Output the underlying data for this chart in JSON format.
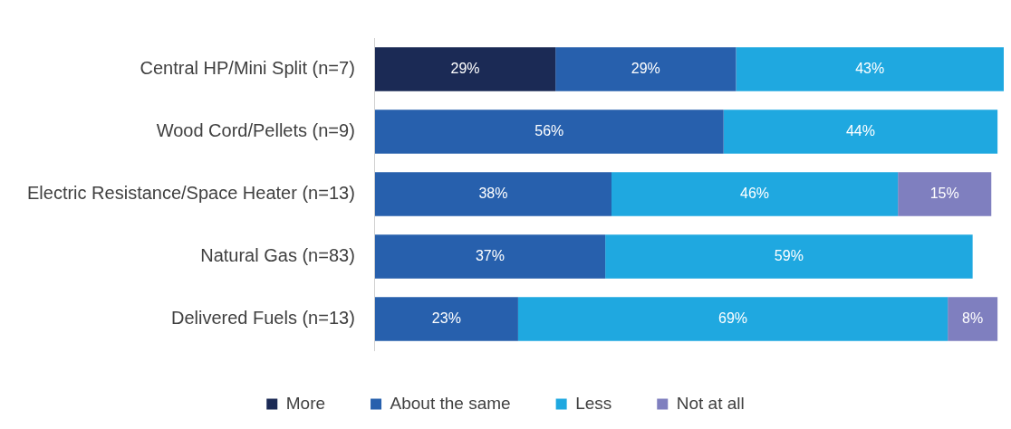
{
  "chart_data": {
    "type": "bar",
    "orientation": "horizontal",
    "stacked": true,
    "legend": "bottom",
    "categories": [
      "Central HP/Mini Split (n=7)",
      "Wood Cord/Pellets (n=9)",
      "Electric Resistance/Space Heater (n=13)",
      "Natural Gas (n=83)",
      "Delivered Fuels (n=13)"
    ],
    "series": [
      {
        "name": "More",
        "color": "#1b2a55",
        "values": [
          29,
          null,
          null,
          null,
          null
        ],
        "value_labels": [
          "29%",
          null,
          null,
          null,
          null
        ]
      },
      {
        "name": "About the same",
        "color": "#2760ad",
        "values": [
          29,
          56,
          38,
          37,
          23
        ],
        "value_labels": [
          "29%",
          "56%",
          "38%",
          "37%",
          "23%"
        ]
      },
      {
        "name": "Less",
        "color": "#1fa8e0",
        "values": [
          43,
          44,
          46,
          59,
          69
        ],
        "value_labels": [
          "43%",
          "44%",
          "46%",
          "59%",
          "69%"
        ]
      },
      {
        "name": "Not at all",
        "color": "#7f7fbf",
        "values": [
          null,
          null,
          15,
          null,
          8
        ],
        "value_labels": [
          null,
          null,
          "15%",
          null,
          "8%"
        ]
      }
    ]
  }
}
